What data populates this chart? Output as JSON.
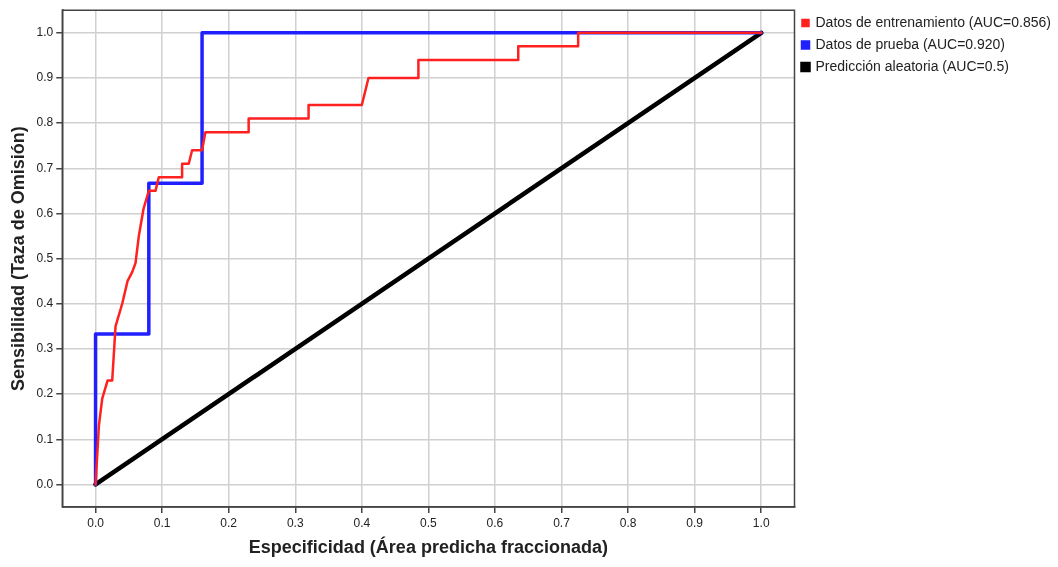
{
  "chart_data": {
    "type": "line",
    "xlabel": "Especificidad (Área predicha fraccionada)",
    "ylabel": "Sensibilidad (Taza de Omisión)",
    "xlim": [
      -0.05,
      1.05
    ],
    "ylim": [
      -0.05,
      1.05
    ],
    "xticks": [
      {
        "value": 0,
        "label": "0.0"
      },
      {
        "value": 0.1,
        "label": "0.1"
      },
      {
        "value": 0.2,
        "label": "0.2"
      },
      {
        "value": 0.3,
        "label": "0.3"
      },
      {
        "value": 0.4,
        "label": "0.4"
      },
      {
        "value": 0.5,
        "label": "0.5"
      },
      {
        "value": 0.6,
        "label": "0.6"
      },
      {
        "value": 0.7,
        "label": "0.7"
      },
      {
        "value": 0.8,
        "label": "0.8"
      },
      {
        "value": 0.9,
        "label": "0.9"
      },
      {
        "value": 1,
        "label": "1.0"
      }
    ],
    "yticks": [
      {
        "value": 0,
        "label": "0.0"
      },
      {
        "value": 0.1,
        "label": "0.1"
      },
      {
        "value": 0.2,
        "label": "0.2"
      },
      {
        "value": 0.3,
        "label": "0.3"
      },
      {
        "value": 0.4,
        "label": "0.4"
      },
      {
        "value": 0.5,
        "label": "0.5"
      },
      {
        "value": 0.6,
        "label": "0.6"
      },
      {
        "value": 0.7,
        "label": "0.7"
      },
      {
        "value": 0.8,
        "label": "0.8"
      },
      {
        "value": 0.9,
        "label": "0.9"
      },
      {
        "value": 1,
        "label": "1.0"
      }
    ],
    "grid": true,
    "legend": "top right",
    "marker": "none",
    "line_style": "solid",
    "series": [
      {
        "name": "Datos de entrenamiento (AUC=0.856)",
        "color": "#ff2020",
        "x": [
          0,
          0.005,
          0.01,
          0.018,
          0.025,
          0.03,
          0.04,
          0.048,
          0.055,
          0.06,
          0.065,
          0.072,
          0.08,
          0.09,
          0.095,
          0.13,
          0.13,
          0.14,
          0.145,
          0.16,
          0.165,
          0.23,
          0.23,
          0.32,
          0.32,
          0.4,
          0.41,
          0.485,
          0.485,
          0.635,
          0.635,
          0.725,
          0.725,
          1
        ],
        "values": [
          0,
          0.13,
          0.19,
          0.23,
          0.23,
          0.35,
          0.4,
          0.45,
          0.47,
          0.49,
          0.55,
          0.61,
          0.65,
          0.65,
          0.68,
          0.68,
          0.71,
          0.71,
          0.74,
          0.74,
          0.78,
          0.78,
          0.81,
          0.81,
          0.84,
          0.84,
          0.9,
          0.9,
          0.94,
          0.94,
          0.97,
          0.97,
          1,
          1
        ]
      },
      {
        "name": "Datos de prueba (AUC=0.920)",
        "color": "#2020ff",
        "x": [
          0,
          0,
          0.08,
          0.08,
          0.16,
          0.16,
          1
        ],
        "values": [
          0,
          0.333,
          0.333,
          0.667,
          0.667,
          1,
          1
        ]
      },
      {
        "name": "Predicción aleatoria (AUC=0.5)",
        "color": "#000000",
        "x": [
          0,
          1
        ],
        "values": [
          0,
          1
        ]
      }
    ]
  }
}
